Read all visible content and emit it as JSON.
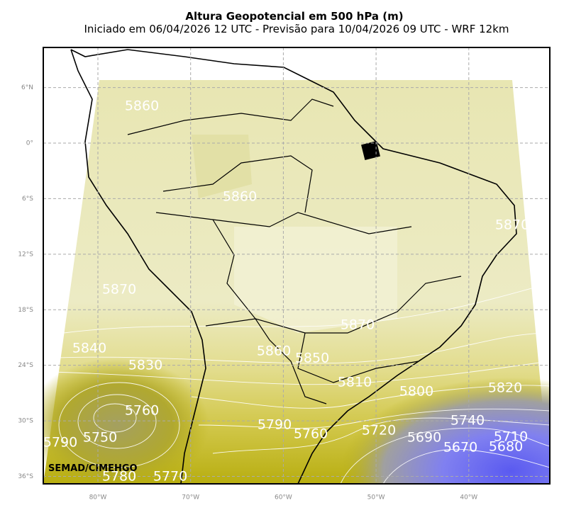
{
  "header": {
    "title": "Altura Geopotencial em 500 hPa (m)",
    "subtitle": "Iniciado em 06/04/2026 12 UTC - Previsão para 10/04/2026 09 UTC - WRF 12km"
  },
  "map": {
    "lat_ticks": [
      {
        "value": 6,
        "label": "6°N"
      },
      {
        "value": 0,
        "label": "0°"
      },
      {
        "value": -6,
        "label": "6°S"
      },
      {
        "value": -12,
        "label": "12°S"
      },
      {
        "value": -18,
        "label": "18°S"
      },
      {
        "value": -24,
        "label": "24°S"
      },
      {
        "value": -30,
        "label": "30°S"
      },
      {
        "value": -36,
        "label": "36°S"
      }
    ],
    "lon_ticks": [
      {
        "value": -80,
        "label": "80°W"
      },
      {
        "value": -70,
        "label": "70°W"
      },
      {
        "value": -60,
        "label": "60°W"
      },
      {
        "value": -50,
        "label": "50°W"
      },
      {
        "value": -40,
        "label": "40°W"
      }
    ],
    "contour_labels": [
      "5860",
      "5860",
      "5870",
      "5870",
      "5870",
      "5840",
      "5860",
      "5850",
      "5830",
      "5810",
      "5800",
      "5820",
      "5760",
      "5790",
      "5760",
      "5720",
      "5740",
      "5690",
      "5710",
      "5750",
      "5790",
      "5670",
      "5680",
      "5780",
      "5770"
    ],
    "watermark": "SEMAD/CIMEHGO"
  }
}
